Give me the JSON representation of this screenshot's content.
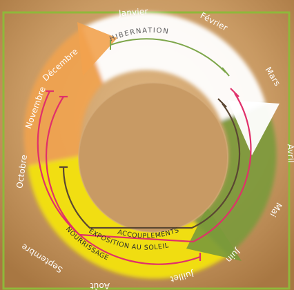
{
  "months": [
    "Janvier",
    "Février",
    "Mars",
    "Avril",
    "Mai",
    "Juin",
    "Juillet",
    "Août",
    "Septembre",
    "Octobre",
    "Novembre",
    "Décembre"
  ],
  "phases": {
    "hibernation": "HIBERNATION",
    "accouplements": "ACCOUPLEMENTS",
    "exposition": "EXPOSITION AU SOLEIL",
    "nourrissage": "NOURRISSAGE"
  },
  "colors": {
    "background": "#c99a63",
    "frame": "#8fb83a",
    "hibernation_ring": "#ffffff",
    "spring_ring": "#7a9a3a",
    "summer_ring": "#f2e20a",
    "autumn_ring": "#f2a24e",
    "line_hibernation": "#7da64a",
    "line_accouplements": "#5a4632",
    "line_exposition": "#e0306a",
    "line_nourrissage": "#e0306a"
  }
}
